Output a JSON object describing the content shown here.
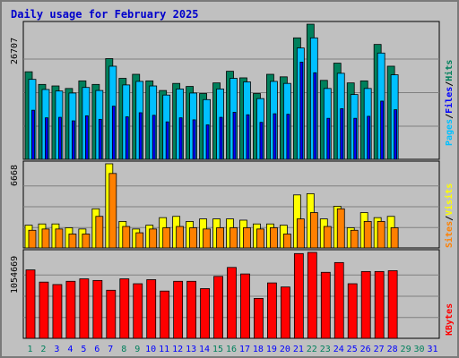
{
  "title": "Daily usage for February 2025",
  "colors": {
    "hits": "#00805c",
    "files": "#00c0ff",
    "pages": "#0000ff",
    "visits": "#ffff00",
    "sites": "#ff8000",
    "kbytes": "#ff0000",
    "weekend_label": "#00805c",
    "weekday_label": "#0000ff"
  },
  "panels": {
    "top": {
      "ymax_label": "26707",
      "legend": [
        "Pages",
        "/",
        "Files",
        "/",
        "Hits"
      ]
    },
    "middle": {
      "ymax_label": "6668",
      "legend": [
        "Sites",
        "/",
        "Visits"
      ]
    },
    "bottom": {
      "ymax_label": "1054669",
      "legend": [
        "KBytes"
      ]
    }
  },
  "chart_data": {
    "type": "bar",
    "title": "Daily usage for February 2025",
    "categories": [
      "1",
      "2",
      "3",
      "4",
      "5",
      "6",
      "7",
      "8",
      "9",
      "10",
      "11",
      "12",
      "13",
      "14",
      "15",
      "16",
      "17",
      "18",
      "19",
      "20",
      "21",
      "22",
      "23",
      "24",
      "25",
      "26",
      "27",
      "28",
      "29",
      "30",
      "31"
    ],
    "weekend_days": [
      1,
      2,
      8,
      9,
      15,
      16,
      22,
      23,
      29,
      30
    ],
    "ylim_top": [
      0,
      26707
    ],
    "ylim_middle": [
      0,
      6668
    ],
    "ylim_bottom": [
      0,
      1054669
    ],
    "series": [
      {
        "name": "Hits",
        "values": [
          17300,
          14800,
          14500,
          14000,
          15500,
          14800,
          19900,
          16000,
          16800,
          15500,
          13600,
          15000,
          14400,
          13000,
          15100,
          17400,
          16100,
          13000,
          16800,
          16300,
          24000,
          26700,
          15600,
          19000,
          15100,
          15500,
          22700,
          18400,
          null,
          null,
          null
        ]
      },
      {
        "name": "Files",
        "values": [
          15800,
          13800,
          13500,
          13100,
          14200,
          13600,
          18400,
          14700,
          15400,
          14500,
          12700,
          13900,
          13100,
          11800,
          13900,
          16000,
          15300,
          12000,
          15400,
          15000,
          22000,
          24000,
          14000,
          17000,
          12800,
          14000,
          21000,
          16700,
          null,
          null,
          null
        ]
      },
      {
        "name": "Pages",
        "values": [
          9700,
          8200,
          8300,
          7600,
          8600,
          7900,
          10500,
          8400,
          9200,
          8700,
          7400,
          8200,
          7800,
          6800,
          8300,
          9300,
          8800,
          7300,
          9000,
          8900,
          19200,
          17100,
          8100,
          10000,
          8100,
          8500,
          11500,
          9800,
          null,
          null,
          null
        ]
      },
      {
        "name": "Visits",
        "values": [
          1800,
          1900,
          1900,
          1600,
          1500,
          3100,
          6668,
          2100,
          1500,
          1800,
          2400,
          2500,
          2100,
          2300,
          2300,
          2300,
          2200,
          1900,
          1900,
          1800,
          4200,
          4300,
          2300,
          3300,
          1600,
          2800,
          2400,
          2500,
          null,
          null,
          null
        ]
      },
      {
        "name": "Sites",
        "values": [
          1400,
          1500,
          1500,
          1100,
          1100,
          2500,
          5900,
          1700,
          1200,
          1500,
          1600,
          1700,
          1600,
          1500,
          1600,
          1600,
          1600,
          1500,
          1600,
          1100,
          2300,
          2800,
          1700,
          3100,
          1400,
          2100,
          2100,
          1600,
          null,
          null,
          null
        ]
      },
      {
        "name": "KBytes",
        "values": [
          840000,
          690000,
          660000,
          700000,
          730000,
          710000,
          590000,
          730000,
          670000,
          720000,
          580000,
          700000,
          700000,
          610000,
          760000,
          870000,
          790000,
          490000,
          680000,
          630000,
          1040000,
          1054669,
          810000,
          930000,
          670000,
          820000,
          820000,
          830000,
          null,
          null,
          null
        ]
      }
    ]
  }
}
